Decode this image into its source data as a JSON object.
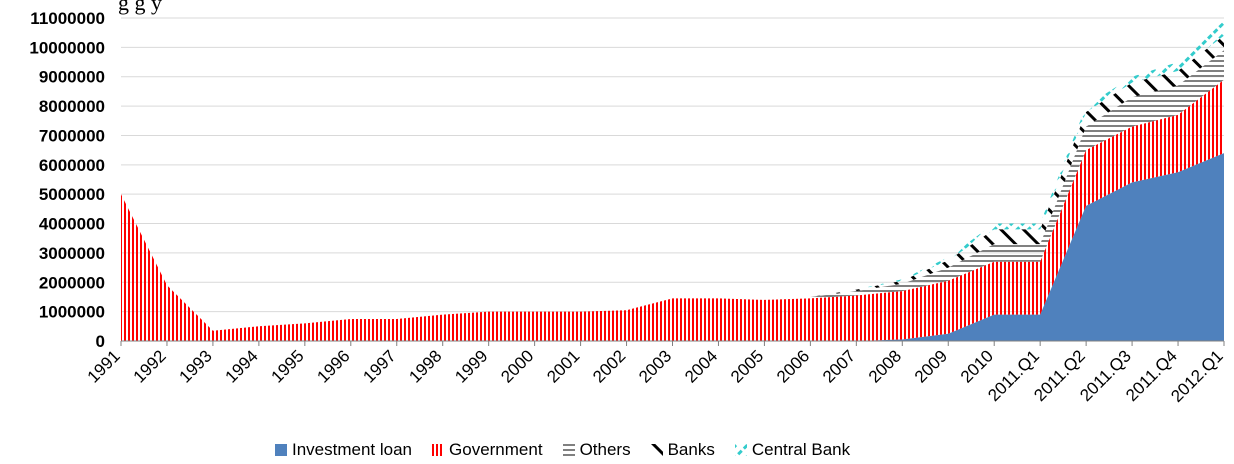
{
  "caption_fragment": "g               g                          y",
  "chart_data": {
    "type": "area",
    "stacked": true,
    "ylim": [
      0,
      11000000
    ],
    "yticks": [
      "0",
      "1000000",
      "2000000",
      "3000000",
      "4000000",
      "5000000",
      "6000000",
      "7000000",
      "8000000",
      "9000000",
      "10000000",
      "11000000"
    ],
    "grid": true,
    "legend_position": "bottom",
    "x_labels": [
      "1991",
      "1992",
      "1993",
      "1994",
      "1995",
      "1996",
      "1997",
      "1998",
      "1999",
      "2000",
      "2001",
      "2002",
      "2003",
      "2004",
      "2005",
      "2006",
      "2007",
      "2008",
      "2009",
      "2010",
      "2011.Q1",
      "2011.Q2",
      "2011.Q3",
      "2011.Q4",
      "2012.Q1"
    ],
    "series": [
      {
        "name": "Investment loan",
        "color": "#4f81bd",
        "pattern": "solid",
        "icon": "solid-square",
        "values": [
          0,
          0,
          0,
          0,
          0,
          0,
          0,
          0,
          0,
          0,
          0,
          0,
          0,
          0,
          0,
          0,
          0,
          50000,
          250000,
          900000,
          900000,
          4600000,
          5400000,
          5750000,
          6400000
        ]
      },
      {
        "name": "Government",
        "color": "#ff0000",
        "pattern": "vertical-stripes",
        "icon": "vertical-stripes",
        "values": [
          5000000,
          1900000,
          350000,
          500000,
          600000,
          750000,
          750000,
          900000,
          1000000,
          1000000,
          1000000,
          1050000,
          1450000,
          1450000,
          1400000,
          1450000,
          1550000,
          1650000,
          1800000,
          1800000,
          1800000,
          1900000,
          1900000,
          1950000,
          2500000
        ]
      },
      {
        "name": "Others",
        "color": "#808080",
        "pattern": "horizontal-stripes",
        "icon": "horizontal-stripes",
        "values": [
          0,
          0,
          0,
          0,
          0,
          0,
          0,
          0,
          0,
          0,
          0,
          0,
          0,
          0,
          0,
          50000,
          150000,
          250000,
          450000,
          600000,
          600000,
          800000,
          1000000,
          1000000,
          1000000
        ]
      },
      {
        "name": "Banks",
        "color": "#000000",
        "pattern": "diagonal-stripes",
        "icon": "diagonal-stripes",
        "values": [
          0,
          0,
          0,
          0,
          0,
          0,
          0,
          0,
          0,
          0,
          0,
          0,
          0,
          0,
          0,
          0,
          50000,
          100000,
          250000,
          500000,
          500000,
          500000,
          500000,
          500000,
          500000
        ]
      },
      {
        "name": "Central Bank",
        "color": "#33cccc",
        "pattern": "diagonal-dashes",
        "icon": "diagonal-dashes",
        "values": [
          0,
          0,
          0,
          0,
          0,
          0,
          0,
          0,
          0,
          0,
          0,
          0,
          0,
          0,
          0,
          0,
          0,
          50000,
          100000,
          200000,
          200000,
          200000,
          200000,
          300000,
          500000
        ]
      }
    ]
  }
}
